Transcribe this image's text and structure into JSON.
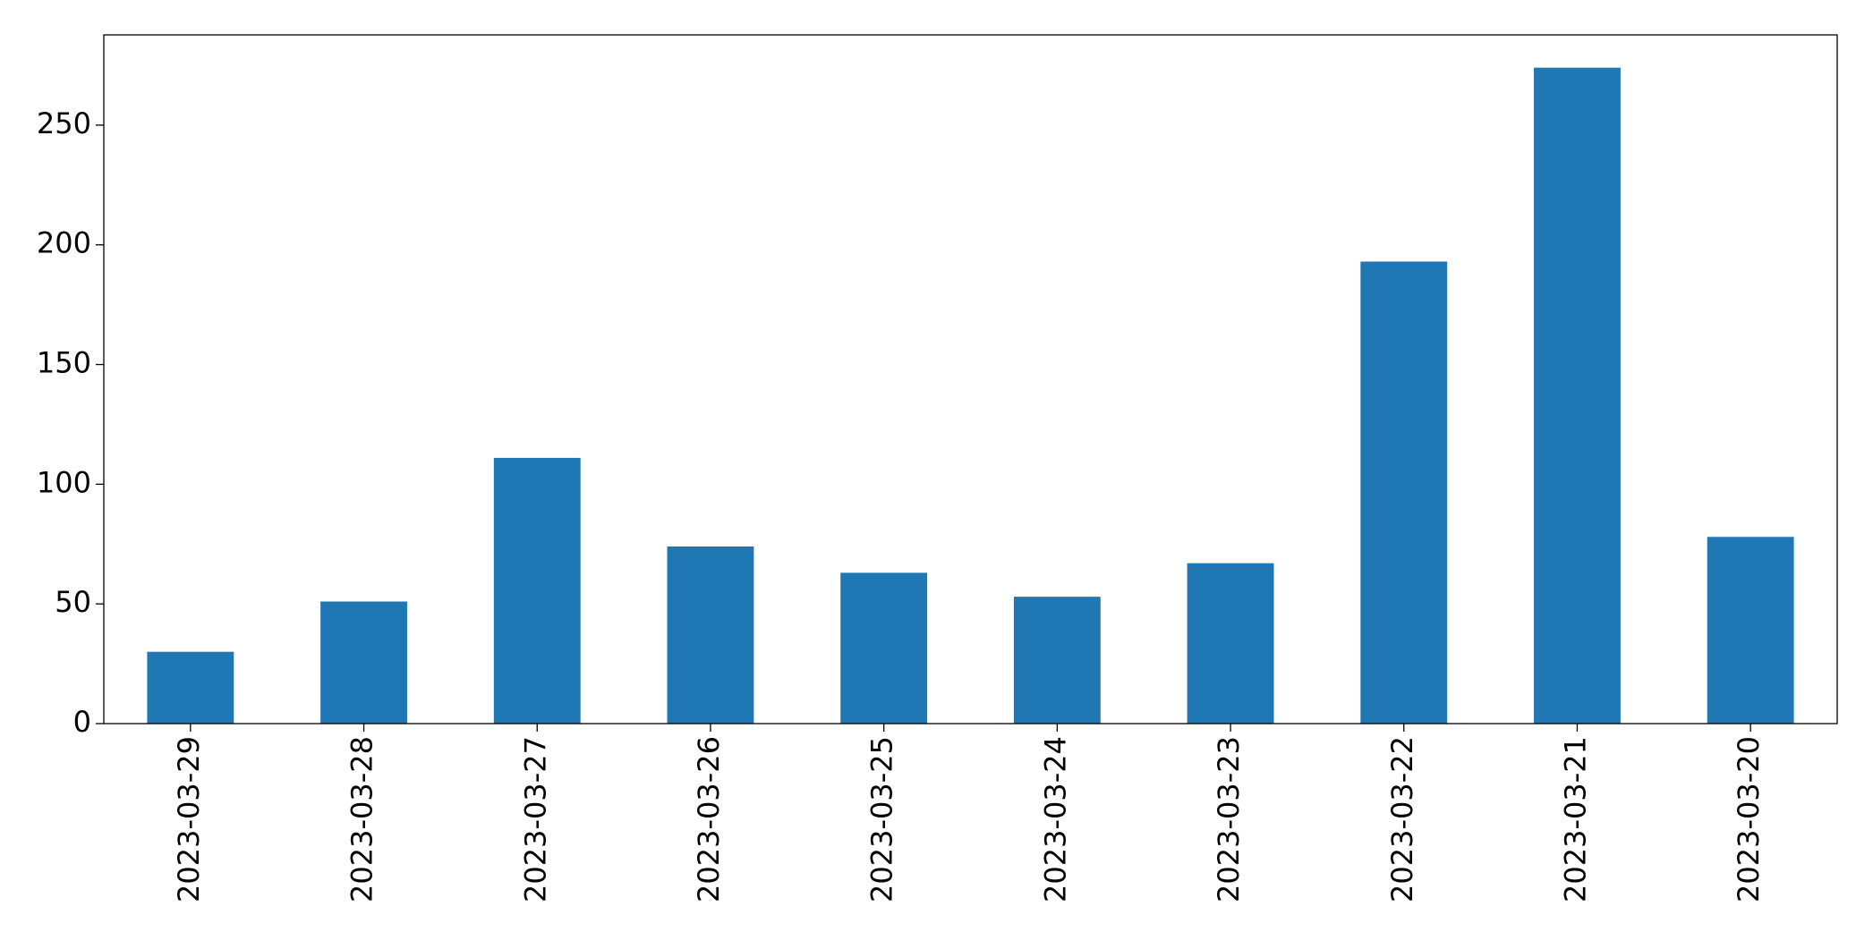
{
  "chart_data": {
    "type": "bar",
    "categories": [
      "2023-03-29",
      "2023-03-28",
      "2023-03-27",
      "2023-03-26",
      "2023-03-25",
      "2023-03-24",
      "2023-03-23",
      "2023-03-22",
      "2023-03-21",
      "2023-03-20"
    ],
    "values": [
      30,
      51,
      111,
      74,
      63,
      53,
      67,
      193,
      274,
      78
    ],
    "color": "#1f77b4",
    "ylim": [
      0,
      287.7
    ],
    "yticks": [
      0,
      50,
      100,
      150,
      200,
      250
    ],
    "grid": false
  }
}
